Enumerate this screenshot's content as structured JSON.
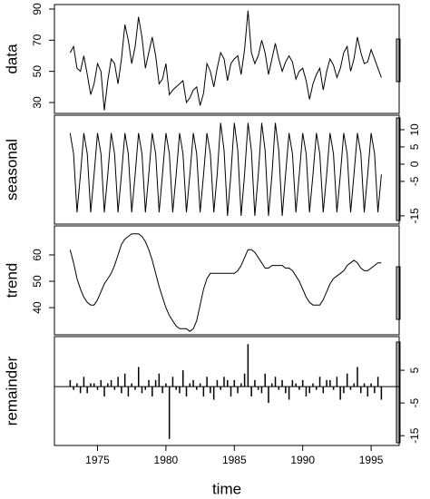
{
  "chart_data": {
    "type": "stl",
    "xlabel": "time",
    "xlim": [
      1971.85,
      1997.05
    ],
    "xticks": [
      1975,
      1980,
      1985,
      1990,
      1995
    ],
    "x": [
      1973,
      1973.25,
      1973.5,
      1973.75,
      1974,
      1974.25,
      1974.5,
      1974.75,
      1975,
      1975.25,
      1975.5,
      1975.75,
      1976,
      1976.25,
      1976.5,
      1976.75,
      1977,
      1977.25,
      1977.5,
      1977.75,
      1978,
      1978.25,
      1978.5,
      1978.75,
      1979,
      1979.25,
      1979.5,
      1979.75,
      1980,
      1980.25,
      1980.5,
      1980.75,
      1981,
      1981.25,
      1981.5,
      1981.75,
      1982,
      1982.25,
      1982.5,
      1982.75,
      1983,
      1983.25,
      1983.5,
      1983.75,
      1984,
      1984.25,
      1984.5,
      1984.75,
      1985,
      1985.25,
      1985.5,
      1985.75,
      1986,
      1986.25,
      1986.5,
      1986.75,
      1987,
      1987.25,
      1987.5,
      1987.75,
      1988,
      1988.25,
      1988.5,
      1988.75,
      1989,
      1989.25,
      1989.5,
      1989.75,
      1990,
      1990.25,
      1990.5,
      1990.75,
      1991,
      1991.25,
      1991.5,
      1991.75,
      1992,
      1992.25,
      1992.5,
      1992.75,
      1993,
      1993.25,
      1993.5,
      1993.75,
      1994,
      1994.25,
      1994.5,
      1994.75,
      1995,
      1995.25,
      1995.5,
      1995.75
    ],
    "panels": [
      {
        "type": "line",
        "ylabel": "data",
        "axis_side": "left",
        "ylim": [
          23,
          92.9
        ],
        "yticks": [
          30,
          50,
          70,
          90
        ],
        "values": [
          62,
          66,
          52,
          50,
          60,
          48,
          35,
          42,
          55,
          50,
          25,
          44,
          58,
          55,
          42,
          58,
          80,
          70,
          55,
          66,
          85,
          72,
          52,
          62,
          72,
          60,
          42,
          45,
          55,
          35,
          38,
          40,
          42,
          44,
          30,
          33,
          38,
          40,
          28,
          36,
          55,
          50,
          40,
          52,
          62,
          58,
          44,
          55,
          58,
          60,
          48,
          64,
          89,
          62,
          55,
          60,
          70,
          62,
          48,
          58,
          68,
          58,
          50,
          56,
          60,
          56,
          45,
          50,
          52,
          44,
          32,
          42,
          48,
          52,
          38,
          50,
          58,
          54,
          46,
          52,
          62,
          66,
          50,
          58,
          72,
          62,
          55,
          56,
          64,
          58,
          52,
          46
        ]
      },
      {
        "type": "line",
        "ylabel": "seasonal",
        "axis_side": "right",
        "ylim": [
          -17.4,
          14.2
        ],
        "yticks": [
          -15,
          -5,
          0,
          5,
          10
        ],
        "values": [
          9,
          3,
          -14,
          -3,
          9,
          3,
          -14,
          -3,
          9,
          3,
          -14,
          -3,
          9,
          3,
          -14,
          -3,
          9,
          3,
          -14,
          -3,
          9,
          3,
          -14,
          -3,
          9,
          3,
          -14,
          -3,
          9,
          3,
          -14,
          -3,
          9,
          3,
          -14,
          -3,
          9,
          3,
          -14,
          -3,
          9,
          3,
          -14,
          -3,
          12,
          4,
          -15,
          -3,
          12,
          4,
          -15,
          -3,
          12,
          4,
          -15,
          -3,
          12,
          4,
          -15,
          -3,
          12,
          4,
          -15,
          -3,
          9,
          3,
          -14,
          -3,
          9,
          3,
          -14,
          -3,
          9,
          3,
          -14,
          -3,
          9,
          3,
          -14,
          -3,
          9,
          3,
          -14,
          -3,
          9,
          3,
          -14,
          -3,
          9,
          3,
          -14,
          -3
        ]
      },
      {
        "type": "line",
        "ylabel": "trend",
        "axis_side": "left",
        "ylim": [
          29.7,
          71
        ],
        "yticks": [
          40,
          50,
          60
        ],
        "values": [
          62,
          57,
          51,
          47,
          44,
          42,
          41,
          41,
          43,
          46,
          49,
          51,
          53,
          56,
          60,
          64,
          66,
          67,
          68,
          68,
          68,
          67,
          65,
          62,
          58,
          53,
          48,
          44,
          40,
          37,
          35,
          33,
          32,
          32,
          32,
          31,
          32,
          35,
          41,
          47,
          51,
          53,
          53,
          53,
          53,
          53,
          53,
          53,
          53,
          54,
          56,
          59,
          62,
          62,
          61,
          59,
          57,
          55,
          55,
          56,
          56,
          56,
          56,
          55,
          55,
          54,
          52,
          50,
          47,
          44,
          42,
          41,
          41,
          41,
          43,
          46,
          49,
          51,
          52,
          53,
          54,
          56,
          57,
          58,
          57,
          55,
          54,
          54,
          55,
          56,
          57,
          57
        ]
      },
      {
        "type": "bar",
        "ylabel": "remainder",
        "axis_side": "right",
        "ylim": [
          -18,
          15.3
        ],
        "yticks": [
          -15,
          -5,
          5
        ],
        "values": [
          2,
          -1,
          1,
          -2,
          3,
          -2,
          1,
          1,
          -1,
          2,
          -3,
          1,
          2,
          -1,
          3,
          -2,
          4,
          -3,
          1,
          -1,
          6,
          -2,
          -1,
          2,
          -3,
          2,
          4,
          -2,
          1,
          -16,
          3,
          -1,
          -2,
          5,
          -3,
          1,
          2,
          -1,
          1,
          -3,
          3,
          -2,
          -4,
          2,
          -1,
          3,
          2,
          -3,
          2,
          -2,
          1,
          4,
          13,
          -3,
          2,
          -1,
          -2,
          4,
          -5,
          1,
          3,
          -1,
          2,
          -2,
          -4,
          2,
          1,
          -1,
          2,
          -3,
          -2,
          1,
          -1,
          3,
          -2,
          2,
          2,
          -1,
          3,
          -4,
          -2,
          4,
          -1,
          1,
          6,
          -2,
          1,
          -3,
          1,
          -2,
          3,
          -4
        ]
      }
    ]
  }
}
